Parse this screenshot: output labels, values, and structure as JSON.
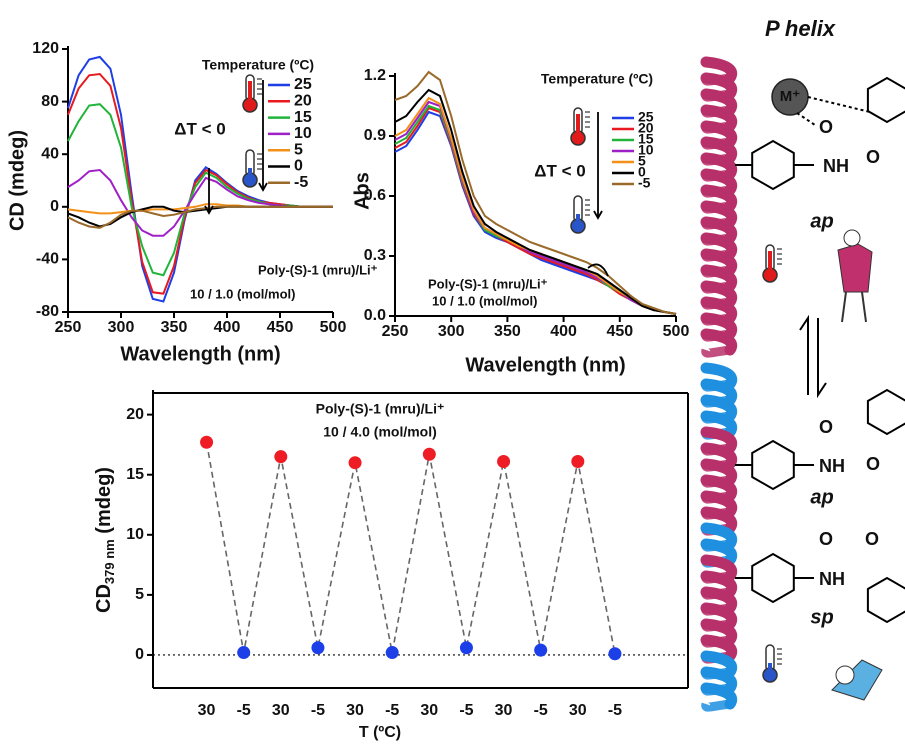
{
  "chart_data": [
    {
      "type": "line",
      "xlabel": "Wavelength (nm)",
      "ylabel": "CD (mdeg)",
      "legend_title": "Temperature (ºC)",
      "annotations": [
        "ΔT < 0",
        "Poly-(S)-1 (mru)/Li⁺",
        "10 / 1.0 (mol/mol)"
      ],
      "xlim": [
        250,
        500
      ],
      "xticks": [
        250,
        300,
        350,
        400,
        450,
        500
      ],
      "ylim": [
        -80,
        120
      ],
      "yticks": [
        -80,
        -40,
        0,
        40,
        80,
        120
      ],
      "x": [
        250,
        260,
        270,
        280,
        290,
        300,
        310,
        320,
        330,
        340,
        350,
        360,
        370,
        380,
        390,
        400,
        410,
        420,
        430,
        440,
        450,
        460,
        470,
        480,
        490,
        500
      ],
      "series": [
        {
          "name": "25",
          "color": "#1f3fe6",
          "values": [
            75,
            100,
            112,
            114,
            105,
            70,
            10,
            -45,
            -70,
            -72,
            -50,
            -10,
            20,
            30,
            25,
            18,
            12,
            8,
            5,
            3,
            2,
            1,
            0,
            0,
            0,
            0
          ]
        },
        {
          "name": "20",
          "color": "#e8191f",
          "values": [
            70,
            90,
            100,
            101,
            92,
            60,
            5,
            -42,
            -65,
            -66,
            -45,
            -8,
            18,
            28,
            24,
            17,
            11,
            7,
            4,
            3,
            2,
            1,
            0,
            0,
            0,
            0
          ]
        },
        {
          "name": "15",
          "color": "#22b43a",
          "values": [
            50,
            65,
            77,
            78,
            70,
            45,
            0,
            -30,
            -50,
            -52,
            -35,
            -5,
            15,
            26,
            22,
            15,
            10,
            6,
            4,
            2,
            1,
            1,
            0,
            0,
            0,
            0
          ]
        },
        {
          "name": "10",
          "color": "#a020c8",
          "values": [
            15,
            20,
            27,
            28,
            20,
            5,
            -8,
            -18,
            -22,
            -22,
            -15,
            -3,
            10,
            22,
            19,
            13,
            8,
            5,
            3,
            2,
            1,
            0,
            0,
            0,
            0,
            0
          ]
        },
        {
          "name": "5",
          "color": "#f39019",
          "values": [
            -2,
            -3,
            -4,
            -5,
            -5,
            -4,
            -3,
            -3,
            -2,
            -2,
            -2,
            -1,
            0,
            2,
            2,
            1,
            1,
            0,
            0,
            0,
            0,
            0,
            0,
            0,
            0,
            0
          ]
        },
        {
          "name": "0",
          "color": "#000000",
          "values": [
            -5,
            -8,
            -12,
            -15,
            -13,
            -8,
            -4,
            -2,
            0,
            0,
            -3,
            -4,
            -3,
            -2,
            -1,
            0,
            0,
            0,
            0,
            0,
            0,
            0,
            0,
            0,
            0,
            0
          ]
        },
        {
          "name": "-5",
          "color": "#9a6a2a",
          "values": [
            -8,
            -12,
            -15,
            -16,
            -12,
            -6,
            -3,
            -3,
            -5,
            -7,
            -6,
            -4,
            -2,
            -1,
            0,
            0,
            0,
            0,
            0,
            0,
            0,
            0,
            0,
            0,
            0,
            0
          ]
        }
      ]
    },
    {
      "type": "line",
      "xlabel": "Wavelength (nm)",
      "ylabel": "Abs",
      "legend_title": "Temperature (ºC)",
      "annotations": [
        "ΔT < 0",
        "Poly-(S)-1 (mru)/Li⁺",
        "10 / 1.0 (mol/mol)"
      ],
      "xlim": [
        250,
        500
      ],
      "xticks": [
        250,
        300,
        350,
        400,
        450,
        500
      ],
      "ylim": [
        0,
        1.2
      ],
      "yticks": [
        {
          "value": 0,
          "label": "0.0"
        },
        0.3,
        0.6,
        0.9,
        1.2
      ],
      "x": [
        250,
        260,
        270,
        280,
        290,
        300,
        310,
        320,
        330,
        340,
        350,
        360,
        370,
        380,
        390,
        400,
        410,
        420,
        430,
        440,
        450,
        460,
        470,
        480,
        490,
        500
      ],
      "series": [
        {
          "name": "25",
          "color": "#1f3fe6",
          "values": [
            0.82,
            0.85,
            0.93,
            1.02,
            1.0,
            0.85,
            0.65,
            0.5,
            0.42,
            0.39,
            0.37,
            0.34,
            0.31,
            0.28,
            0.26,
            0.24,
            0.22,
            0.2,
            0.18,
            0.15,
            0.12,
            0.08,
            0.05,
            0.03,
            0.02,
            0.01
          ]
        },
        {
          "name": "20",
          "color": "#e8191f",
          "values": [
            0.84,
            0.87,
            0.95,
            1.04,
            1.02,
            0.86,
            0.66,
            0.51,
            0.43,
            0.4,
            0.37,
            0.34,
            0.31,
            0.29,
            0.27,
            0.25,
            0.23,
            0.21,
            0.18,
            0.15,
            0.11,
            0.08,
            0.05,
            0.03,
            0.02,
            0.01
          ]
        },
        {
          "name": "15",
          "color": "#22b43a",
          "values": [
            0.86,
            0.89,
            0.97,
            1.05,
            1.03,
            0.87,
            0.67,
            0.52,
            0.43,
            0.4,
            0.38,
            0.35,
            0.32,
            0.3,
            0.28,
            0.26,
            0.24,
            0.22,
            0.19,
            0.15,
            0.12,
            0.08,
            0.05,
            0.03,
            0.02,
            0.01
          ]
        },
        {
          "name": "10",
          "color": "#a020c8",
          "values": [
            0.88,
            0.91,
            0.99,
            1.07,
            1.05,
            0.88,
            0.68,
            0.52,
            0.44,
            0.41,
            0.38,
            0.35,
            0.32,
            0.3,
            0.28,
            0.26,
            0.24,
            0.22,
            0.19,
            0.16,
            0.12,
            0.08,
            0.05,
            0.03,
            0.02,
            0.01
          ]
        },
        {
          "name": "5",
          "color": "#f39019",
          "values": [
            0.9,
            0.93,
            1.01,
            1.09,
            1.06,
            0.89,
            0.69,
            0.53,
            0.44,
            0.41,
            0.38,
            0.35,
            0.33,
            0.31,
            0.29,
            0.27,
            0.25,
            0.23,
            0.2,
            0.16,
            0.12,
            0.09,
            0.05,
            0.03,
            0.02,
            0.01
          ]
        },
        {
          "name": "0",
          "color": "#000000",
          "values": [
            0.97,
            1.0,
            1.07,
            1.13,
            1.1,
            0.93,
            0.72,
            0.55,
            0.46,
            0.42,
            0.39,
            0.36,
            0.33,
            0.31,
            0.29,
            0.27,
            0.25,
            0.23,
            0.21,
            0.17,
            0.13,
            0.09,
            0.05,
            0.03,
            0.02,
            0.01
          ]
        },
        {
          "name": "-5",
          "color": "#9a6a2a",
          "values": [
            1.08,
            1.1,
            1.15,
            1.22,
            1.18,
            1.0,
            0.78,
            0.6,
            0.5,
            0.46,
            0.43,
            0.4,
            0.37,
            0.35,
            0.33,
            0.31,
            0.29,
            0.27,
            0.24,
            0.2,
            0.15,
            0.1,
            0.06,
            0.04,
            0.02,
            0.01
          ]
        }
      ]
    },
    {
      "type": "scatter",
      "xlabel": "T (ºC)",
      "ylabel": [
        "CD",
        "379 nm",
        " (mdeg)"
      ],
      "annotations": [
        "Poly-(S)-1 (mru)/Li⁺",
        "10 / 4.0 (mol/mol)"
      ],
      "categories": [
        "30",
        "-5",
        "30",
        "-5",
        "30",
        "-5",
        "30",
        "-5",
        "30",
        "-5",
        "30",
        "-5"
      ],
      "values": [
        17.7,
        0.2,
        16.5,
        0.6,
        16.0,
        0.2,
        16.7,
        0.6,
        16.1,
        0.4,
        16.1,
        0.1
      ],
      "colors": [
        "#ee1c25",
        "#1c3fe8",
        "#ee1c25",
        "#1c3fe8",
        "#ee1c25",
        "#1c3fe8",
        "#ee1c25",
        "#1c3fe8",
        "#ee1c25",
        "#1c3fe8",
        "#ee1c25",
        "#1c3fe8"
      ],
      "ylim": [
        -2.75,
        21.8
      ],
      "yticks": [
        0,
        5,
        10,
        15,
        20
      ],
      "hline": 0
    }
  ],
  "diagram": {
    "title": "P helix",
    "labels": [
      "M⁺",
      "O",
      "NH",
      "O",
      "ap",
      "O",
      "NH",
      "O",
      "ap",
      "O",
      "O",
      "NH",
      "sp"
    ]
  }
}
